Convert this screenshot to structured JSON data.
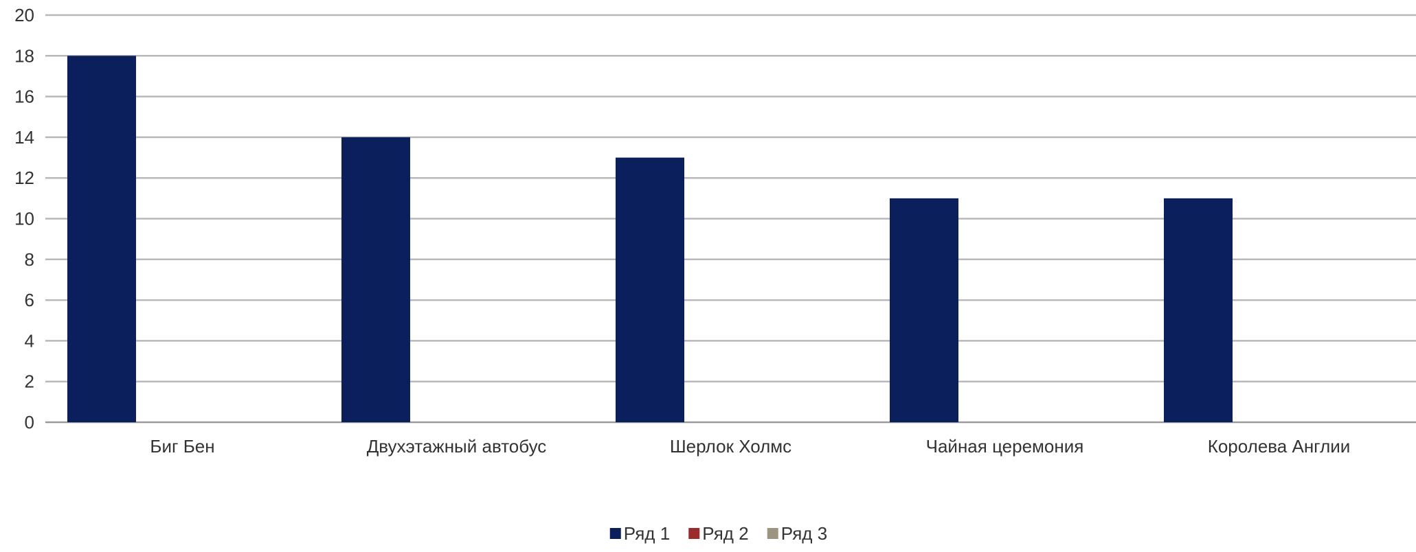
{
  "chart_data": {
    "type": "bar",
    "title": "",
    "xlabel": "",
    "ylabel": "",
    "categories": [
      "Биг Бен",
      "Двухэтажный автобус",
      "Шерлок Холмс",
      "Чайная церемония",
      "Королева Англии"
    ],
    "series": [
      {
        "name": "Ряд 1",
        "color": "#0b1f5c",
        "values": [
          18,
          14,
          13,
          11,
          11
        ]
      },
      {
        "name": "Ряд 2",
        "color": "#9b2b2b",
        "values": [
          0,
          0,
          0,
          0,
          0
        ]
      },
      {
        "name": "Ряд 3",
        "color": "#9c9580",
        "values": [
          0,
          0,
          0,
          0,
          0
        ]
      }
    ],
    "ylim": [
      0,
      20
    ],
    "yticks": [
      0,
      2,
      4,
      6,
      8,
      10,
      12,
      14,
      16,
      18,
      20
    ],
    "grid": true,
    "legend_position": "bottom-center"
  }
}
